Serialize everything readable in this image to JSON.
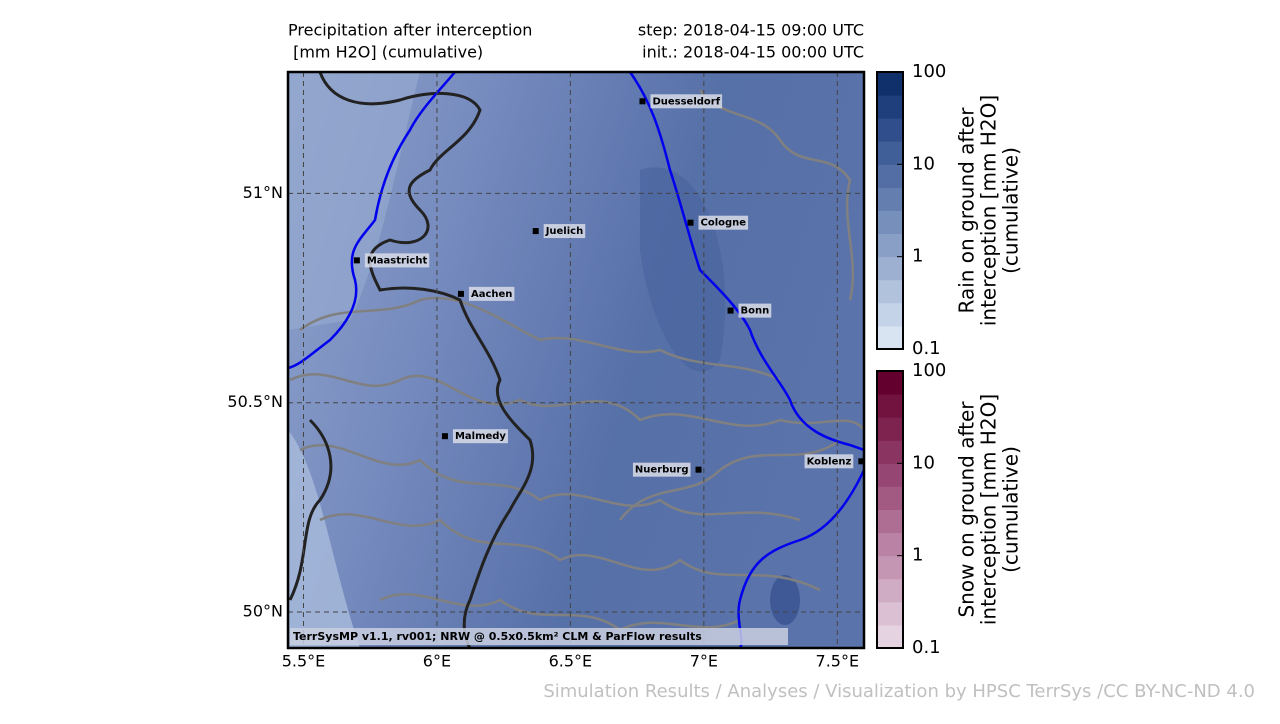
{
  "map": {
    "title_lines": [
      "Precipitation after interception",
      " [mm H2O] (cumulative)"
    ],
    "step": "step: 2018-04-15 09:00 UTC",
    "init": "init.: 2018-04-15 00:00 UTC",
    "xlim": [
      5.442,
      7.6
    ],
    "ylim": [
      49.914,
      51.29
    ],
    "xticks": [
      {
        "value": 5.5,
        "label": "5.5°E"
      },
      {
        "value": 6,
        "label": "6°E"
      },
      {
        "value": 6.5,
        "label": "6.5°E"
      },
      {
        "value": 7,
        "label": "7°E"
      },
      {
        "value": 7.5,
        "label": "7.5°E"
      }
    ],
    "yticks": [
      {
        "value": 50,
        "label": "50°N"
      },
      {
        "value": 50.5,
        "label": "50.5°N"
      },
      {
        "value": 51,
        "label": "51°N"
      }
    ],
    "grid": true,
    "cities": [
      {
        "name": "Duesseldorf",
        "lon": 6.77,
        "lat": 51.22,
        "label_side": "right"
      },
      {
        "name": "Juelich",
        "lon": 6.37,
        "lat": 50.91,
        "label_side": "right"
      },
      {
        "name": "Cologne",
        "lon": 6.95,
        "lat": 50.93,
        "label_side": "right"
      },
      {
        "name": "Maastricht",
        "lon": 5.7,
        "lat": 50.84,
        "label_side": "right"
      },
      {
        "name": "Aachen",
        "lon": 6.09,
        "lat": 50.76,
        "label_side": "right"
      },
      {
        "name": "Bonn",
        "lon": 7.1,
        "lat": 50.72,
        "label_side": "right"
      },
      {
        "name": "Malmedy",
        "lon": 6.03,
        "lat": 50.42,
        "label_side": "right"
      },
      {
        "name": "Nuerburg",
        "lon": 6.98,
        "lat": 50.34,
        "label_side": "left"
      },
      {
        "name": "Koblenz",
        "lon": 7.59,
        "lat": 50.36,
        "label_side": "left"
      }
    ],
    "attribution": "TerrSysMP v1.1, rv001; NRW @ 0.5x0.5km² CLM & ParFlow results"
  },
  "colorbars": [
    {
      "label_lines": [
        "Rain on ground after",
        "interception [mm H2O]",
        "(cumulative)"
      ],
      "log_scale": true,
      "lim": [
        0.1,
        100
      ],
      "ticks": [
        0.1,
        1,
        10,
        100
      ],
      "colors": [
        "#d9e4f2",
        "#c5d3e8",
        "#b1c2dd",
        "#9eb0d2",
        "#8a9fc6",
        "#778fbb",
        "#647eb0",
        "#526ea4",
        "#405e98",
        "#2f4e8b",
        "#1f3e7c",
        "#10306c"
      ]
    },
    {
      "label_lines": [
        "Snow on ground after",
        "interception [mm H2O]",
        "(cumulative)"
      ],
      "log_scale": true,
      "lim": [
        0.1,
        100
      ],
      "ticks": [
        0.1,
        1,
        10,
        100
      ],
      "colors": [
        "#e6d3e2",
        "#dbbfd3",
        "#d0abc4",
        "#c596b4",
        "#ba82a4",
        "#ae6e94",
        "#a25a83",
        "#964672",
        "#8a3461",
        "#7e2250",
        "#71123f",
        "#64002e"
      ]
    }
  ],
  "credit": "Simulation Results / Analyses / Visualization by HPSC TerrSys /CC BY-NC-ND 4.0"
}
